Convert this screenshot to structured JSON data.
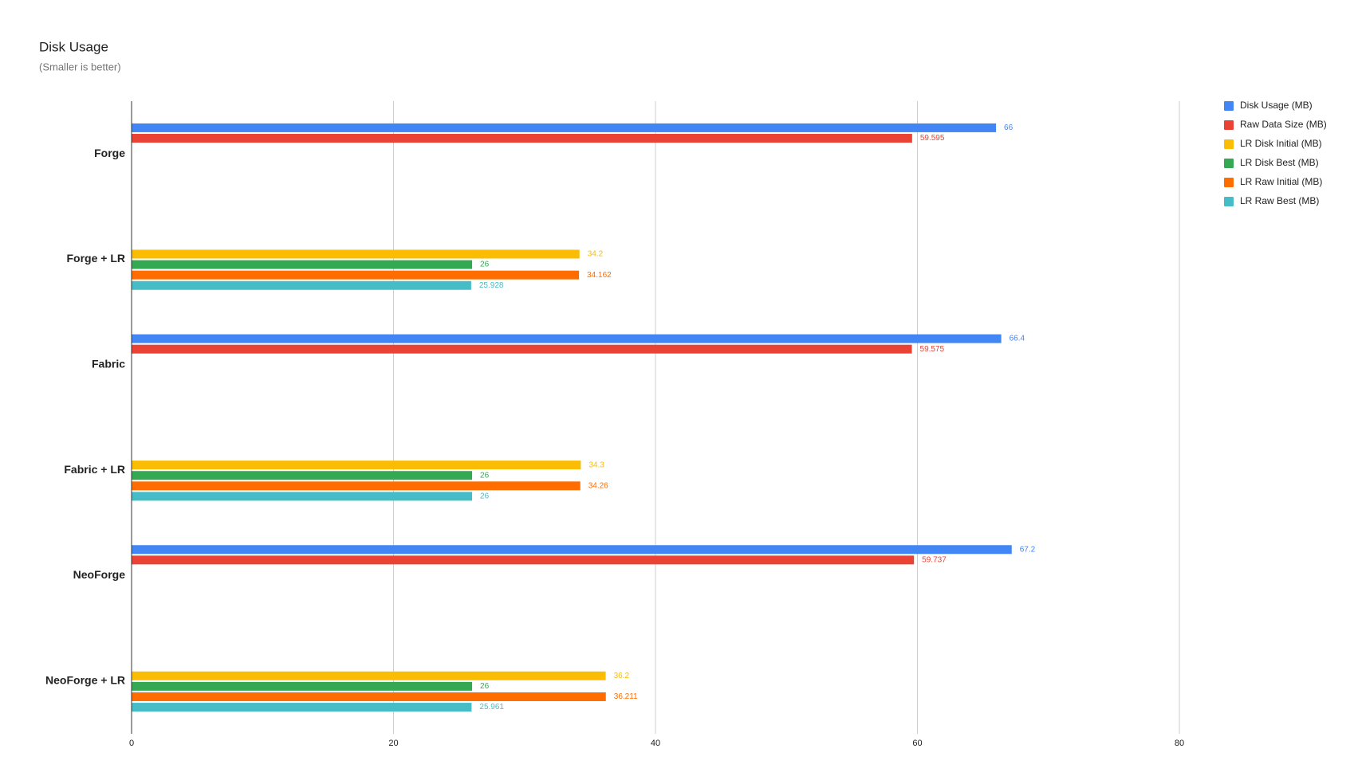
{
  "chart_data": {
    "type": "bar",
    "orientation": "horizontal",
    "title": "Disk Usage",
    "subtitle": "(Smaller is better)",
    "categories": [
      "Forge",
      "Forge + LR",
      "Fabric",
      "Fabric + LR",
      "NeoForge",
      "NeoForge + LR"
    ],
    "series": [
      {
        "name": "Disk Usage (MB)",
        "color": "#4285f4",
        "values": [
          66,
          null,
          66.4,
          null,
          67.2,
          null
        ]
      },
      {
        "name": "Raw Data Size (MB)",
        "color": "#ea4335",
        "values": [
          59.595,
          null,
          59.575,
          null,
          59.737,
          null
        ]
      },
      {
        "name": "LR Disk Initial (MB)",
        "color": "#fbbc04",
        "values": [
          null,
          34.2,
          null,
          34.3,
          null,
          36.2
        ]
      },
      {
        "name": "LR Disk Best (MB)",
        "color": "#34a853",
        "values": [
          null,
          26,
          null,
          26,
          null,
          26
        ]
      },
      {
        "name": "LR Raw Initial (MB)",
        "color": "#ff6d01",
        "values": [
          null,
          34.162,
          null,
          34.26,
          null,
          36.211
        ]
      },
      {
        "name": "LR Raw Best (MB)",
        "color": "#46bdc6",
        "values": [
          null,
          25.928,
          null,
          26,
          null,
          25.961
        ]
      }
    ],
    "xlim": [
      0,
      80
    ],
    "xticks": [
      0,
      20,
      40,
      60,
      80
    ],
    "grid": true,
    "legend": "right"
  }
}
